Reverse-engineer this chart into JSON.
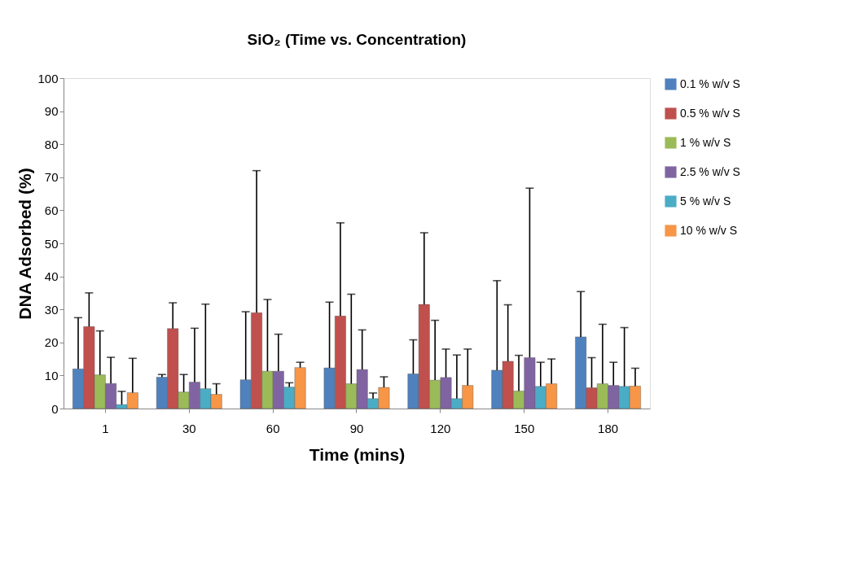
{
  "chart_data": {
    "type": "bar",
    "title": "SiO₂ (Time vs. Concentration)",
    "xlabel": "Time (mins)",
    "ylabel": "DNA Adsorbed (%)",
    "categories": [
      "1",
      "30",
      "60",
      "90",
      "120",
      "150",
      "180"
    ],
    "series": [
      {
        "name": "0.1 % w/v S",
        "color": "#4f81bd",
        "values": [
          12,
          9.5,
          8.7,
          12.3,
          10.5,
          11.6,
          21.7
        ],
        "errors": [
          [
            12,
            27.5
          ],
          [
            9.5,
            10.3
          ],
          [
            8.7,
            29.3
          ],
          [
            12.3,
            32.2
          ],
          [
            10.5,
            20.8
          ],
          [
            11.6,
            38.7
          ],
          [
            21.7,
            35.4
          ]
        ]
      },
      {
        "name": "0.5 % w/v S",
        "color": "#c0504d",
        "values": [
          24.8,
          24.2,
          29,
          28,
          31.5,
          14.3,
          6.3
        ],
        "errors": [
          [
            24.8,
            35
          ],
          [
            24.2,
            32
          ],
          [
            29,
            72
          ],
          [
            28,
            56.2
          ],
          [
            31.5,
            53.2
          ],
          [
            14.3,
            31.4
          ],
          [
            6.3,
            15.4
          ]
        ]
      },
      {
        "name": "1 % w/v S",
        "color": "#9bbb59",
        "values": [
          10.2,
          5,
          11.3,
          7.5,
          8.6,
          5.3,
          7.5
        ],
        "errors": [
          [
            10.2,
            23.5
          ],
          [
            5,
            10.3
          ],
          [
            11.3,
            33
          ],
          [
            7.5,
            34.6
          ],
          [
            8.6,
            26.7
          ],
          [
            5.3,
            16.1
          ],
          [
            7.5,
            25.5
          ]
        ]
      },
      {
        "name": "2.5 % w/v S",
        "color": "#8064a2",
        "values": [
          7.6,
          8,
          11.3,
          11.8,
          9.4,
          15.4,
          7
        ],
        "errors": [
          [
            7.6,
            15.5
          ],
          [
            8,
            24.3
          ],
          [
            11.3,
            22.5
          ],
          [
            11.8,
            23.8
          ],
          [
            9.4,
            18
          ],
          [
            15.4,
            66.7
          ],
          [
            7,
            14
          ]
        ]
      },
      {
        "name": "5 % w/v S",
        "color": "#4bacc6",
        "values": [
          1.2,
          6,
          6.5,
          3,
          3,
          6.7,
          6.7
        ],
        "errors": [
          [
            1.2,
            5.2
          ],
          [
            6,
            31.6
          ],
          [
            6.5,
            7.8
          ],
          [
            3,
            4.7
          ],
          [
            3,
            16.2
          ],
          [
            6.7,
            14
          ],
          [
            6.7,
            24.5
          ]
        ]
      },
      {
        "name": "10 % w/v S",
        "color": "#f79646",
        "values": [
          4.8,
          4.3,
          12.4,
          6.4,
          7,
          7.5,
          6.8
        ],
        "errors": [
          [
            4.8,
            15.2
          ],
          [
            4.3,
            7.5
          ],
          [
            12.4,
            14
          ],
          [
            6.4,
            9.6
          ],
          [
            7,
            18
          ],
          [
            7.5,
            15
          ],
          [
            6.8,
            12.2
          ]
        ]
      }
    ],
    "ylim": [
      0,
      100
    ],
    "yticks": [
      0,
      10,
      20,
      30,
      40,
      50,
      60,
      70,
      80,
      90,
      100
    ],
    "grid": false,
    "legend": "right"
  }
}
